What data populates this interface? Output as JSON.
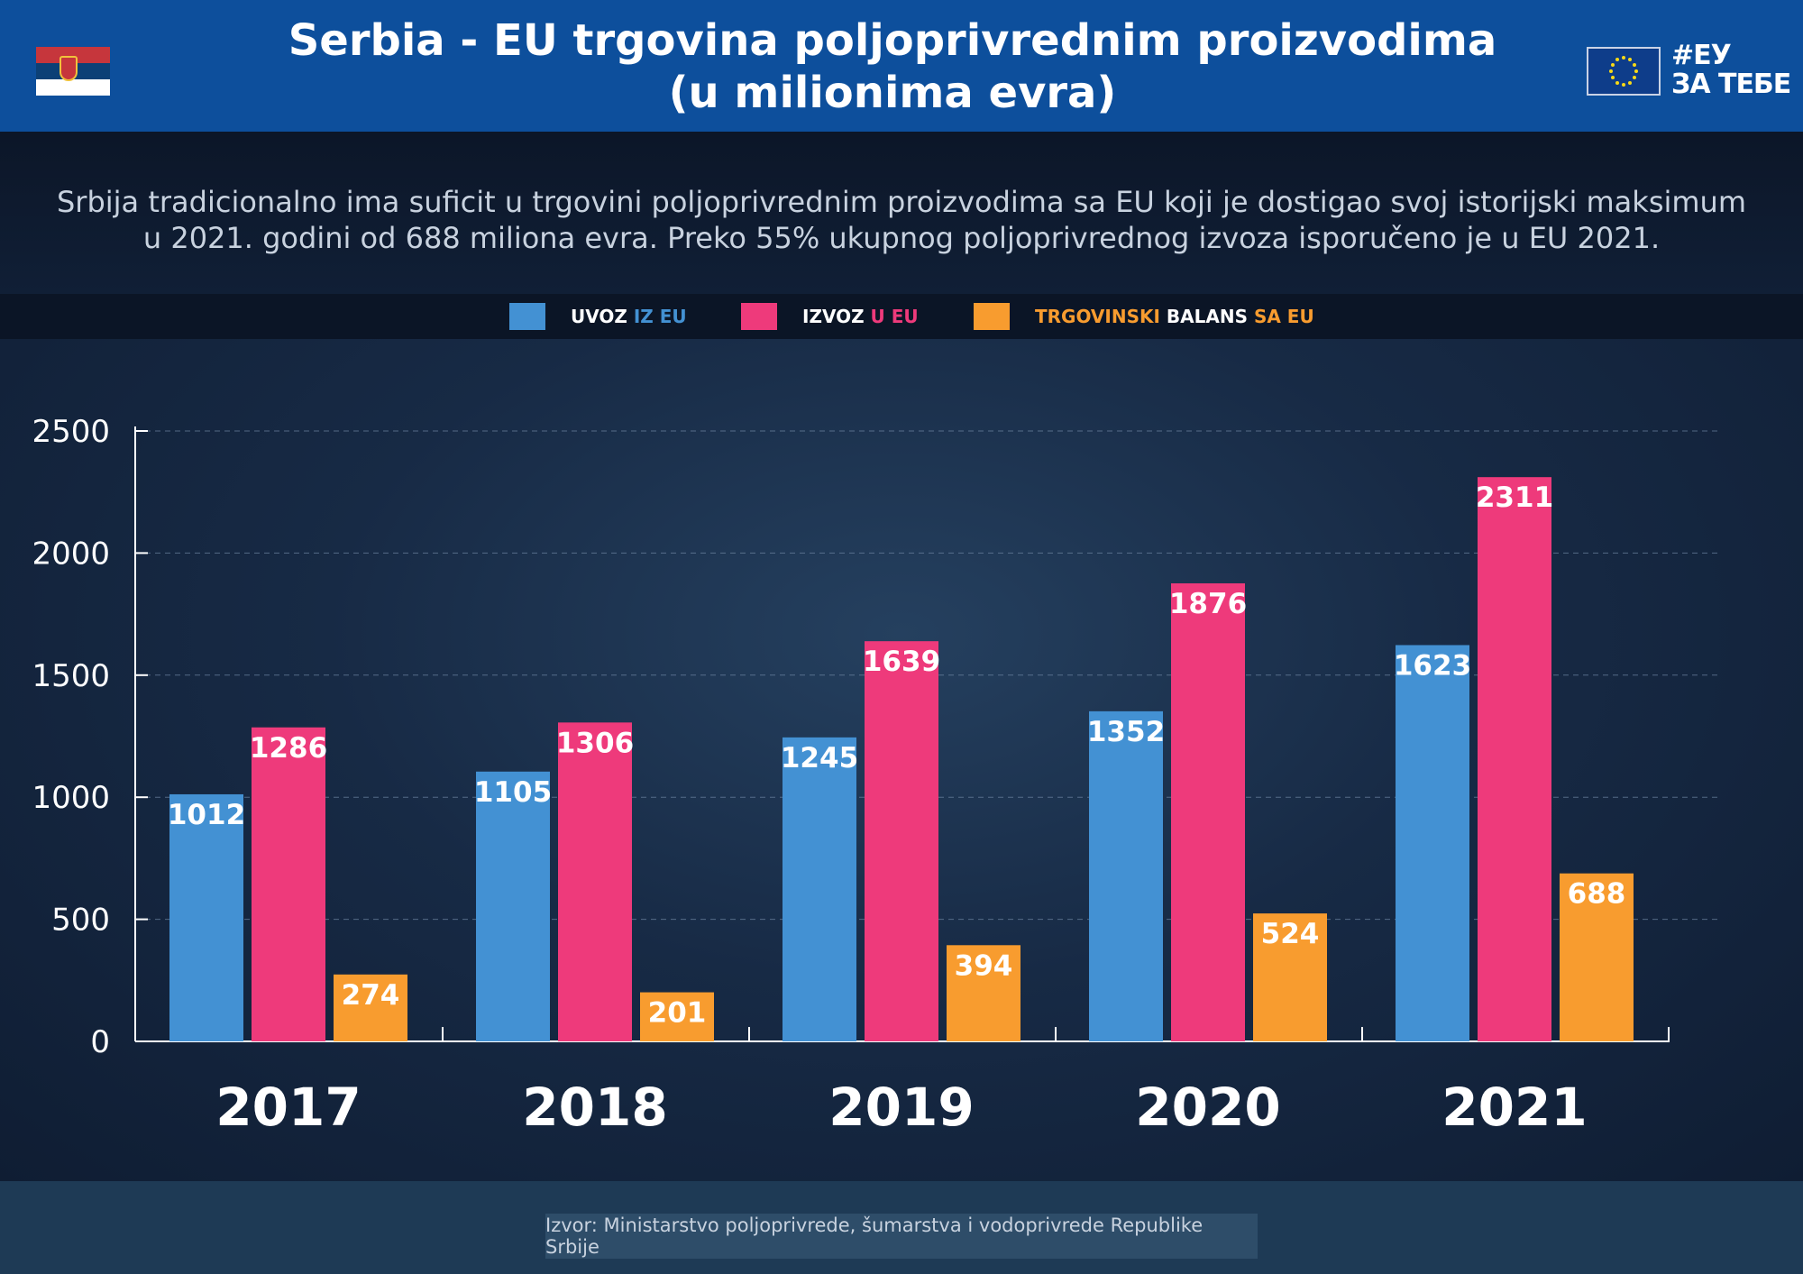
{
  "header": {
    "title_line1": "Serbia - EU trgovina poljoprivrednim proizvodima",
    "title_line2": "(u milionima evra)",
    "tag_line1": "#ЕУ",
    "tag_line2": "ЗА ТЕБЕ"
  },
  "description": "Srbija tradicionalno ima suficit u trgovini poljoprivrednim proizvodima sa EU koji je dostigao svoj istorijski maksimum u 2021. godini od 688 miliona evra. Preko 55% ukupnog poljoprivrednog izvoza isporučeno je u EU 2021.",
  "legend": [
    {
      "parts": [
        {
          "text": "UVOZ ",
          "color": "#ffffff"
        },
        {
          "text": "IZ EU",
          "color": "#4391d3"
        }
      ],
      "color": "#4391d3"
    },
    {
      "parts": [
        {
          "text": "IZVOZ ",
          "color": "#ffffff"
        },
        {
          "text": "U EU",
          "color": "#ee3a7b"
        }
      ],
      "color": "#ee3a7b"
    },
    {
      "parts": [
        {
          "text": "TRGOVINSKI ",
          "color": "#f89c2f"
        },
        {
          "text": "BALANS ",
          "color": "#ffffff"
        },
        {
          "text": "SA EU",
          "color": "#f89c2f"
        }
      ],
      "color": "#f89c2f"
    }
  ],
  "colors": {
    "import": "#4391d3",
    "export": "#ee3a7b",
    "balance": "#f89c2f",
    "header": "#0d4f9c"
  },
  "icons": [
    "serbia-flag-icon",
    "eu-flag-icon"
  ],
  "chart_data": {
    "type": "bar",
    "categories": [
      "2017",
      "2018",
      "2019",
      "2020",
      "2021"
    ],
    "series": [
      {
        "name": "UVOZ IZ EU",
        "values": [
          1012,
          1105,
          1245,
          1352,
          1623
        ]
      },
      {
        "name": "IZVOZ U EU",
        "values": [
          1286,
          1306,
          1639,
          1876,
          2311
        ]
      },
      {
        "name": "TRGOVINSKI BALANS SA EU",
        "values": [
          274,
          201,
          394,
          524,
          688
        ]
      }
    ],
    "yticks": [
      0,
      500,
      1000,
      1500,
      2000,
      2500
    ],
    "ylim": [
      0,
      2500
    ],
    "grid": true,
    "legend_position": "top"
  },
  "source": "Izvor: Ministarstvo poljoprivrede, šumarstva i vodoprivrede Republike Srbije"
}
